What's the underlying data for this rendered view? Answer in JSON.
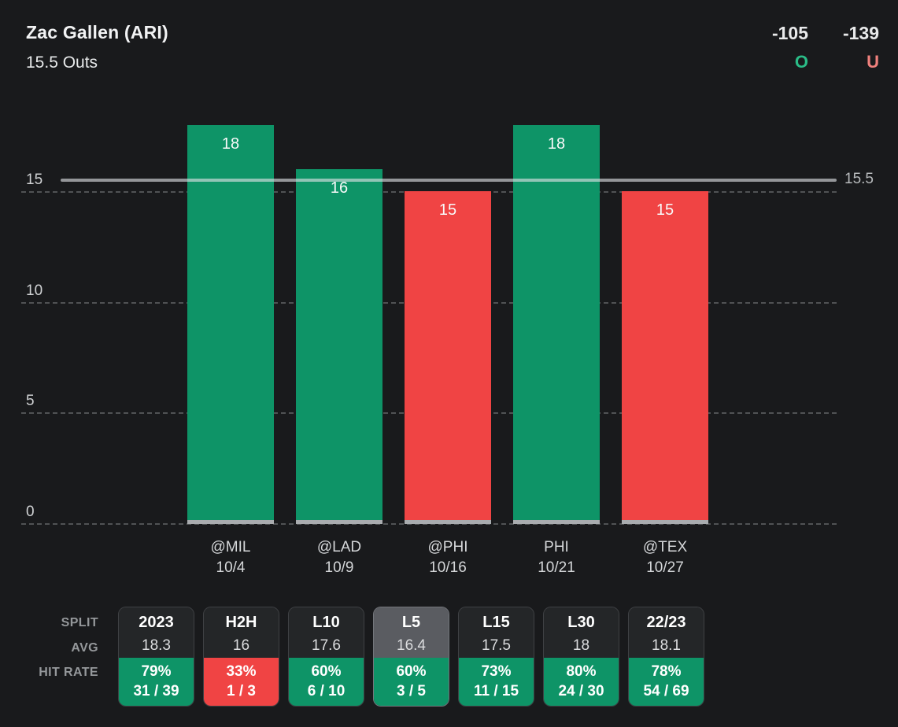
{
  "header": {
    "player": "Zac Gallen (ARI)",
    "prop": "15.5 Outs",
    "over": {
      "odds": "-105",
      "label": "O"
    },
    "under": {
      "odds": "-139",
      "label": "U"
    }
  },
  "chart_data": {
    "type": "bar",
    "title": "Zac Gallen (ARI) 15.5 Outs — outs recorded by game",
    "categories": [
      "@MIL",
      "@LAD",
      "@PHI",
      "PHI",
      "@TEX"
    ],
    "dates": [
      "10/4",
      "10/9",
      "10/16",
      "10/21",
      "10/27"
    ],
    "values": [
      18,
      16,
      15,
      18,
      15
    ],
    "prop_line": 15.5,
    "prop_line_label": "15.5",
    "yticks": [
      0,
      5,
      10,
      15
    ],
    "ylim": [
      0,
      19.7
    ],
    "grid": "dashed-horizontal",
    "legend": "none",
    "colors": {
      "over_bar": "#0e9467",
      "under_bar": "#f04444",
      "bar_base": "#a9acaf",
      "over_text": "#2abc87",
      "under_text": "#f0817d"
    }
  },
  "splits": {
    "row_labels": [
      "SPLIT",
      "AVG",
      "HIT RATE"
    ],
    "selected_split": "L5",
    "cards": [
      {
        "split": "2023",
        "avg": "18.3",
        "hit_pct": "79%",
        "hit_frac": "31 / 39",
        "result": "over",
        "selected": false
      },
      {
        "split": "H2H",
        "avg": "16",
        "hit_pct": "33%",
        "hit_frac": "1 / 3",
        "result": "under",
        "selected": false
      },
      {
        "split": "L10",
        "avg": "17.6",
        "hit_pct": "60%",
        "hit_frac": "6 / 10",
        "result": "over",
        "selected": false
      },
      {
        "split": "L5",
        "avg": "16.4",
        "hit_pct": "60%",
        "hit_frac": "3 / 5",
        "result": "over",
        "selected": true
      },
      {
        "split": "L15",
        "avg": "17.5",
        "hit_pct": "73%",
        "hit_frac": "11 / 15",
        "result": "over",
        "selected": false
      },
      {
        "split": "L30",
        "avg": "18",
        "hit_pct": "80%",
        "hit_frac": "24 / 30",
        "result": "over",
        "selected": false
      },
      {
        "split": "22/23",
        "avg": "18.1",
        "hit_pct": "78%",
        "hit_frac": "54 / 69",
        "result": "over",
        "selected": false
      }
    ]
  }
}
